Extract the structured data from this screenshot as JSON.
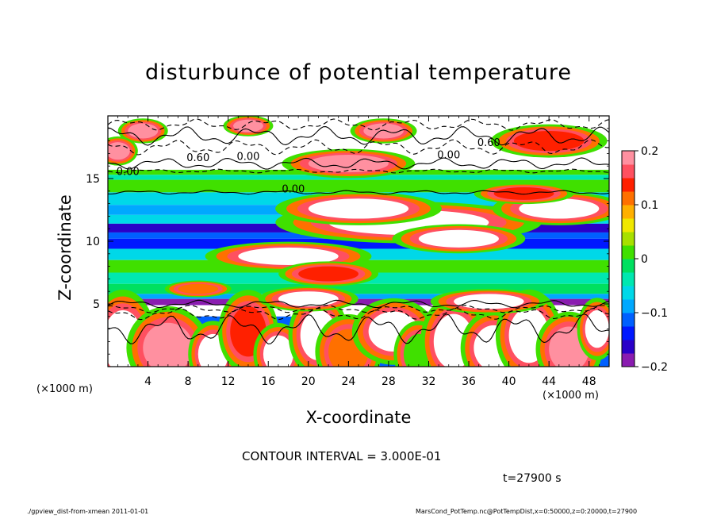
{
  "chart_data": {
    "type": "heatmap",
    "title": "disturbunce of potential temperature",
    "xlabel": "X-coordinate",
    "ylabel": "Z-coordinate",
    "x_unit_left": "(×1000 m)",
    "x_unit_right": "(×1000 m)",
    "xlim": [
      0,
      50
    ],
    "ylim": [
      0,
      20
    ],
    "x_ticks": [
      4,
      8,
      12,
      16,
      20,
      24,
      28,
      32,
      36,
      40,
      44,
      48
    ],
    "x_tick_labels": [
      "4",
      "8",
      "12",
      "16",
      "20",
      "24",
      "28",
      "32",
      "36",
      "40",
      "44",
      "48"
    ],
    "y_ticks": [
      5,
      10,
      15
    ],
    "y_tick_labels": [
      "5",
      "10",
      "15"
    ],
    "colorbar": {
      "range": [
        -0.2,
        0.2
      ],
      "ticks": [
        0.2,
        0.1,
        0,
        -0.1,
        -0.2
      ],
      "tick_labels": [
        "0.2",
        "0.1",
        "0",
        "−0.1",
        "−0.2"
      ],
      "colors": [
        "#8a1cb0",
        "#2a00c8",
        "#0018ff",
        "#0060ff",
        "#00a8ff",
        "#00d8e8",
        "#00e8b0",
        "#00e060",
        "#40e000",
        "#a8e000",
        "#f0e800",
        "#ffb000",
        "#ff7000",
        "#ff2000",
        "#ff5060",
        "#ff90a0"
      ]
    },
    "contour_labels": [
      {
        "text": "0.60",
        "x": 9.0,
        "z": 16.4
      },
      {
        "text": "0.00",
        "x": 14.0,
        "z": 16.5
      },
      {
        "text": "0.00",
        "x": 18.5,
        "z": 13.9
      },
      {
        "text": "0.00",
        "x": 2.0,
        "z": 15.3
      },
      {
        "text": "0.00",
        "x": 34.0,
        "z": 16.6
      },
      {
        "text": "0.60",
        "x": 38.0,
        "z": 17.6
      }
    ],
    "bands": [
      {
        "z0": 18.2,
        "z1": 20.0,
        "value": 0.3
      },
      {
        "z0": 15.7,
        "z1": 18.2,
        "value": 0.3
      },
      {
        "z0": 15.3,
        "z1": 15.7,
        "value": 0.0
      },
      {
        "z0": 14.9,
        "z1": 15.3,
        "value": -0.04
      },
      {
        "z0": 13.9,
        "z1": 14.9,
        "value": 0.0
      },
      {
        "z0": 12.9,
        "z1": 13.9,
        "value": -0.06
      },
      {
        "z0": 12.1,
        "z1": 12.9,
        "value": -0.1
      },
      {
        "z0": 11.4,
        "z1": 12.1,
        "value": -0.06
      },
      {
        "z0": 10.7,
        "z1": 11.4,
        "value": -0.16
      },
      {
        "z0": 10.2,
        "z1": 10.7,
        "value": -0.12
      },
      {
        "z0": 9.4,
        "z1": 10.2,
        "value": -0.15
      },
      {
        "z0": 8.5,
        "z1": 9.4,
        "value": -0.06
      },
      {
        "z0": 7.5,
        "z1": 8.5,
        "value": 0.0
      },
      {
        "z0": 6.6,
        "z1": 7.5,
        "value": -0.05
      },
      {
        "z0": 5.8,
        "z1": 6.6,
        "value": -0.02
      },
      {
        "z0": 5.4,
        "z1": 5.8,
        "value": -0.08
      },
      {
        "z0": 4.9,
        "z1": 5.4,
        "value": -0.18
      },
      {
        "z0": 4.0,
        "z1": 4.9,
        "value": 0.3
      },
      {
        "z0": 0.0,
        "z1": 4.0,
        "value": -0.12
      }
    ],
    "blobs": [
      {
        "x": 1.5,
        "z": 2.0,
        "w": 2.0,
        "h": 2.5,
        "value": 0.3
      },
      {
        "x": 6.0,
        "z": 1.5,
        "w": 2.5,
        "h": 2.0,
        "value": 0.18
      },
      {
        "x": 10.5,
        "z": 1.0,
        "w": 1.5,
        "h": 1.6,
        "value": 0.3
      },
      {
        "x": 14.0,
        "z": 2.8,
        "w": 1.8,
        "h": 2.0,
        "value": 0.14
      },
      {
        "x": 17.0,
        "z": 1.0,
        "w": 1.5,
        "h": 1.5,
        "value": 0.3
      },
      {
        "x": 21.0,
        "z": 2.5,
        "w": 1.8,
        "h": 2.0,
        "value": 0.3
      },
      {
        "x": 24.0,
        "z": 1.2,
        "w": 2.0,
        "h": 1.8,
        "value": 0.1
      },
      {
        "x": 28.5,
        "z": 2.8,
        "w": 2.5,
        "h": 1.6,
        "value": 0.3
      },
      {
        "x": 31.0,
        "z": 1.0,
        "w": 1.5,
        "h": 1.6,
        "value": 0.02
      },
      {
        "x": 34.5,
        "z": 2.0,
        "w": 2.0,
        "h": 2.2,
        "value": 0.3
      },
      {
        "x": 38.5,
        "z": 1.5,
        "w": 2.0,
        "h": 1.8,
        "value": 0.3
      },
      {
        "x": 42.0,
        "z": 2.5,
        "w": 2.0,
        "h": 2.2,
        "value": 0.3
      },
      {
        "x": 46.0,
        "z": 1.4,
        "w": 2.0,
        "h": 1.8,
        "value": 0.2
      },
      {
        "x": 48.8,
        "z": 3.0,
        "w": 1.2,
        "h": 1.5,
        "value": 0.3
      },
      {
        "x": 3.5,
        "z": 18.8,
        "w": 1.5,
        "h": 0.6,
        "value": 0.2
      },
      {
        "x": 14.0,
        "z": 19.2,
        "w": 1.5,
        "h": 0.5,
        "value": 0.2
      },
      {
        "x": 27.5,
        "z": 18.8,
        "w": 2.0,
        "h": 0.6,
        "value": 0.2
      },
      {
        "x": 44.0,
        "z": 18.0,
        "w": 3.5,
        "h": 0.8,
        "value": 0.14
      },
      {
        "x": 1.0,
        "z": 17.2,
        "w": 1.2,
        "h": 0.7,
        "value": 0.18
      },
      {
        "x": 24.0,
        "z": 16.2,
        "w": 4.0,
        "h": 0.7,
        "value": 0.2
      },
      {
        "x": 30.0,
        "z": 11.5,
        "w": 8.0,
        "h": 1.0,
        "value": 0.3
      },
      {
        "x": 35.0,
        "z": 10.2,
        "w": 4.0,
        "h": 0.7,
        "value": 0.3
      },
      {
        "x": 25.0,
        "z": 12.6,
        "w": 5.0,
        "h": 0.8,
        "value": 0.3
      },
      {
        "x": 18.0,
        "z": 8.8,
        "w": 5.0,
        "h": 0.7,
        "value": 0.3
      },
      {
        "x": 22.0,
        "z": 7.4,
        "w": 3.0,
        "h": 0.6,
        "value": 0.14
      },
      {
        "x": 45.0,
        "z": 12.6,
        "w": 4.0,
        "h": 0.8,
        "value": 0.3
      },
      {
        "x": 41.5,
        "z": 13.8,
        "w": 3.0,
        "h": 0.5,
        "value": 0.14
      },
      {
        "x": 20.0,
        "z": 5.4,
        "w": 3.0,
        "h": 0.6,
        "value": 0.3
      },
      {
        "x": 38.0,
        "z": 5.2,
        "w": 3.5,
        "h": 0.6,
        "value": 0.3
      },
      {
        "x": 9.0,
        "z": 6.2,
        "w": 2.0,
        "h": 0.4,
        "value": 0.1
      }
    ],
    "contour_lines": [
      {
        "z": 19.3,
        "amp": 0.3,
        "style": "dashed"
      },
      {
        "z": 18.4,
        "amp": 0.5,
        "style": "solid"
      },
      {
        "z": 17.5,
        "amp": 0.4,
        "style": "dashed"
      },
      {
        "z": 16.2,
        "amp": 0.3,
        "style": "solid"
      },
      {
        "z": 15.6,
        "amp": 0.1,
        "style": "dashed"
      },
      {
        "z": 13.9,
        "amp": 0.1,
        "style": "solid"
      },
      {
        "z": 5.0,
        "amp": 0.2,
        "style": "solid"
      },
      {
        "z": 4.6,
        "amp": 0.2,
        "style": "dashed"
      },
      {
        "z": 4.2,
        "amp": 0.3,
        "style": "dashed"
      },
      {
        "z": 3.0,
        "amp": 0.8,
        "style": "solid"
      }
    ]
  },
  "annotations": {
    "contour_interval": "CONTOUR INTERVAL = 3.000E-01",
    "time": "t=27900 s",
    "footer_left": "./gpview_dist-from-xmean   2011-01-01",
    "footer_right": "MarsCond_PotTemp.nc@PotTempDist,x=0:50000,z=0:20000,t=27900"
  }
}
